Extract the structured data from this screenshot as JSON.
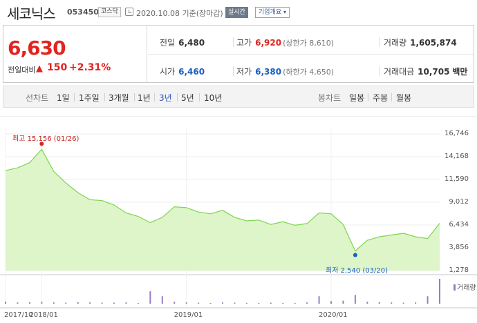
{
  "header": {
    "name": "세코닉스",
    "code": "053450",
    "market": "코스닥",
    "date": "2020.10.08",
    "basis": "기준(장마감)",
    "realtime_label": "실시간",
    "company_info_label": "기업개요"
  },
  "price": {
    "current": "6,630",
    "change_label": "전일대비",
    "change": "150",
    "change_pct": "+2.31%",
    "direction": "up",
    "prev_close_label": "전일",
    "prev_close": "6,480",
    "high_label": "고가",
    "high": "6,920",
    "upper_limit": "(상한가 8,610)",
    "volume_label": "거래량",
    "volume": "1,605,874",
    "open_label": "시가",
    "open": "6,460",
    "low_label": "저가",
    "low": "6,380",
    "lower_limit": "(하한가 4,650)",
    "value_label": "거래대금",
    "value": "10,705",
    "value_unit": "백만"
  },
  "colors": {
    "up": "#e0241f",
    "down": "#1a5fc1",
    "area_fill": "#ddf5c8",
    "line": "#7ed44f",
    "volume": "#9a7ac6"
  },
  "tabs": {
    "line_label": "선차트",
    "periods": [
      "1일",
      "1주일",
      "3개월",
      "1년",
      "3년",
      "5년",
      "10년"
    ],
    "active_period": "3년",
    "candle_label": "봉차트",
    "candles": [
      "일봉",
      "주봉",
      "월봉"
    ]
  },
  "chart_data": {
    "type": "area",
    "y_ticks": [
      "16,746",
      "14,168",
      "11,590",
      "9,012",
      "6,434",
      "3,856",
      "1,278"
    ],
    "ylim": [
      1278,
      16746
    ],
    "x_ticks": [
      "2017/10",
      "2018/01",
      "2019/01",
      "2020/01"
    ],
    "x": [
      "2017/10",
      "2017/11",
      "2017/12",
      "2018/01",
      "2018/02",
      "2018/03",
      "2018/04",
      "2018/05",
      "2018/06",
      "2018/07",
      "2018/08",
      "2018/09",
      "2018/10",
      "2018/11",
      "2018/12",
      "2019/01",
      "2019/02",
      "2019/03",
      "2019/04",
      "2019/05",
      "2019/06",
      "2019/07",
      "2019/08",
      "2019/09",
      "2019/10",
      "2019/11",
      "2019/12",
      "2020/01",
      "2020/02",
      "2020/03",
      "2020/04",
      "2020/05",
      "2020/06",
      "2020/07",
      "2020/08",
      "2020/09",
      "2020/10"
    ],
    "values": [
      12600,
      12900,
      13500,
      15000,
      12500,
      11200,
      10100,
      9300,
      9200,
      8700,
      7800,
      7400,
      6700,
      7300,
      8500,
      8400,
      7900,
      7700,
      8100,
      7300,
      6900,
      7000,
      6500,
      6800,
      6400,
      6600,
      7800,
      7700,
      6500,
      3500,
      4700,
      5100,
      5300,
      5500,
      5100,
      4900,
      6630
    ],
    "high_note": "최고 15,156 (01/26)",
    "low_note": "최저 2,540 (03/20)",
    "volume_label": "거래량",
    "volume": [
      0.08,
      0.05,
      0.06,
      0.07,
      0.05,
      0.04,
      0.06,
      0.05,
      0.04,
      0.04,
      0.05,
      0.03,
      0.5,
      0.3,
      0.08,
      0.05,
      0.04,
      0.03,
      0.05,
      0.04,
      0.03,
      0.03,
      0.04,
      0.03,
      0.03,
      0.05,
      0.3,
      0.1,
      0.12,
      0.35,
      0.08,
      0.06,
      0.05,
      0.04,
      0.05,
      0.3,
      1.0
    ],
    "grid": true
  }
}
